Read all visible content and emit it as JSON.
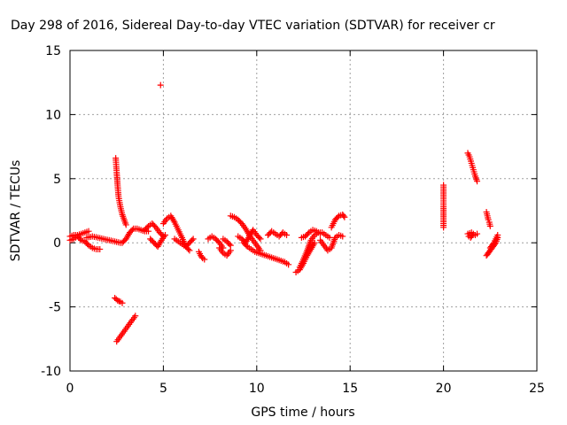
{
  "chart_data": {
    "type": "scatter",
    "title": "Day 298 of 2016, Sidereal Day-to-day VTEC variation (SDTVAR) for receiver cr",
    "xlabel": "GPS time / hours",
    "ylabel": "SDTVAR / TECUs",
    "xlim": [
      0,
      25
    ],
    "ylim": [
      -10,
      15
    ],
    "xticks": [
      "0",
      "5",
      "10",
      "15",
      "20",
      "25"
    ],
    "yticks": [
      "-10",
      "-5",
      "0",
      "5",
      "10",
      "15"
    ],
    "grid": true,
    "marker": "+",
    "color": "#ff0000",
    "series": [
      {
        "segments": [
          {
            "x": [
              0.0,
              0.2,
              0.4,
              0.6,
              0.8,
              1.0,
              1.2,
              1.4,
              1.6
            ],
            "y": [
              0.2,
              0.3,
              0.5,
              0.2,
              0.1,
              -0.2,
              -0.4,
              -0.5,
              -0.5
            ]
          },
          {
            "x": [
              0.0,
              0.2,
              0.4,
              0.6,
              0.8,
              1.0
            ],
            "y": [
              0.5,
              0.6,
              0.6,
              0.7,
              0.8,
              0.9
            ]
          },
          {
            "x": [
              0.9,
              1.2,
              1.5,
              1.8,
              2.1,
              2.4,
              2.7
            ],
            "y": [
              0.4,
              0.5,
              0.4,
              0.3,
              0.2,
              0.1,
              0.0
            ]
          },
          {
            "x": [
              2.45,
              2.5,
              2.55,
              2.6,
              2.7,
              2.8,
              2.9,
              3.0
            ],
            "y": [
              6.6,
              5.5,
              4.5,
              3.6,
              2.8,
              2.2,
              1.8,
              1.4
            ]
          },
          {
            "x": [
              2.4,
              2.55,
              2.7,
              2.8
            ],
            "y": [
              -4.3,
              -4.5,
              -4.6,
              -4.7
            ]
          },
          {
            "x": [
              2.5,
              2.7,
              2.9,
              3.1,
              3.3,
              3.5
            ],
            "y": [
              -7.7,
              -7.3,
              -6.9,
              -6.5,
              -6.1,
              -5.7
            ]
          },
          {
            "x": [
              2.8,
              3.0,
              3.2,
              3.4,
              3.6,
              3.8,
              4.0,
              4.2
            ],
            "y": [
              0.0,
              0.3,
              0.8,
              1.1,
              1.1,
              1.0,
              0.9,
              0.9
            ]
          },
          {
            "x": [
              4.0,
              4.2,
              4.4,
              4.6,
              4.8,
              5.0
            ],
            "y": [
              1.0,
              1.3,
              1.5,
              1.2,
              0.8,
              0.5
            ]
          },
          {
            "x": [
              4.3,
              4.5,
              4.7,
              4.9,
              5.1
            ],
            "y": [
              0.3,
              0.0,
              -0.3,
              0.2,
              0.6
            ]
          },
          {
            "x": [
              4.85
            ],
            "y": [
              12.3
            ]
          },
          {
            "x": [
              5.0,
              5.2,
              5.4,
              5.6,
              5.8,
              6.0,
              6.2,
              6.4
            ],
            "y": [
              1.5,
              1.9,
              2.1,
              1.6,
              1.0,
              0.4,
              -0.3,
              -0.6
            ]
          },
          {
            "x": [
              5.6,
              5.8,
              6.0,
              6.2,
              6.4,
              6.6
            ],
            "y": [
              0.3,
              0.1,
              -0.1,
              -0.3,
              0.0,
              0.3
            ]
          },
          {
            "x": [
              6.9,
              7.0,
              7.1,
              7.2
            ],
            "y": [
              -0.7,
              -1.0,
              -1.2,
              -1.3
            ]
          },
          {
            "x": [
              7.4,
              7.6,
              7.8,
              8.0,
              8.2
            ],
            "y": [
              0.3,
              0.5,
              0.3,
              0.0,
              -0.4
            ]
          },
          {
            "x": [
              8.0,
              8.2,
              8.4,
              8.6
            ],
            "y": [
              -0.4,
              -0.8,
              -1.0,
              -0.6
            ]
          },
          {
            "x": [
              8.2,
              8.4,
              8.6
            ],
            "y": [
              0.3,
              0.1,
              -0.2
            ]
          },
          {
            "x": [
              8.6,
              8.8,
              9.0,
              9.2,
              9.4,
              9.6,
              9.8,
              10.0,
              10.2
            ],
            "y": [
              2.1,
              2.0,
              1.8,
              1.5,
              1.1,
              0.6,
              0.2,
              -0.2,
              -0.6
            ]
          },
          {
            "x": [
              9.0,
              9.2,
              9.4,
              9.6,
              9.8,
              10.0,
              10.2
            ],
            "y": [
              0.5,
              0.3,
              0.0,
              0.5,
              1.0,
              0.6,
              0.3
            ]
          },
          {
            "x": [
              9.3,
              9.5,
              9.7,
              9.9,
              10.1,
              10.3,
              10.5,
              10.7,
              10.9,
              11.1,
              11.3,
              11.5,
              11.7
            ],
            "y": [
              0.0,
              -0.3,
              -0.5,
              -0.7,
              -0.8,
              -0.9,
              -1.0,
              -1.1,
              -1.2,
              -1.3,
              -1.4,
              -1.5,
              -1.7
            ]
          },
          {
            "x": [
              10.6,
              10.8,
              11.0,
              11.2,
              11.4,
              11.6
            ],
            "y": [
              0.6,
              0.9,
              0.7,
              0.5,
              0.8,
              0.6
            ]
          },
          {
            "x": [
              12.1,
              12.3,
              12.5,
              12.7,
              12.9,
              13.1
            ],
            "y": [
              -2.3,
              -2.1,
              -1.6,
              -1.0,
              -0.5,
              0.0
            ]
          },
          {
            "x": [
              12.3,
              12.5,
              12.7,
              12.9,
              13.1,
              13.3,
              13.5,
              13.7,
              13.9
            ],
            "y": [
              -1.9,
              -1.3,
              -0.6,
              0.2,
              0.6,
              0.8,
              0.8,
              0.6,
              0.4
            ]
          },
          {
            "x": [
              12.4,
              12.6,
              12.8,
              13.0,
              13.2,
              13.4
            ],
            "y": [
              0.4,
              0.5,
              0.8,
              1.0,
              0.9,
              0.7
            ]
          },
          {
            "x": [
              13.4,
              13.6,
              13.8,
              14.0,
              14.2,
              14.4,
              14.6
            ],
            "y": [
              0.2,
              -0.2,
              -0.6,
              -0.4,
              0.4,
              0.6,
              0.5
            ]
          },
          {
            "x": [
              14.0,
              14.2,
              14.4,
              14.6,
              14.7
            ],
            "y": [
              1.2,
              1.8,
              2.1,
              2.2,
              2.0
            ]
          },
          {
            "x": [
              20.0,
              20.0,
              20.0,
              20.0
            ],
            "y": [
              4.5,
              2.8,
              1.5,
              1.2
            ]
          },
          {
            "x": [
              21.3,
              21.4,
              21.5,
              21.6,
              21.7,
              21.8
            ],
            "y": [
              7.0,
              6.7,
              6.2,
              5.7,
              5.2,
              4.8
            ]
          },
          {
            "x": [
              21.3,
              21.5,
              21.7,
              21.8
            ],
            "y": [
              0.7,
              0.8,
              0.6,
              0.7
            ]
          },
          {
            "x": [
              21.35,
              21.45,
              21.55
            ],
            "y": [
              0.5,
              0.4,
              0.6
            ]
          },
          {
            "x": [
              22.3,
              22.35,
              22.4,
              22.45,
              22.5
            ],
            "y": [
              2.4,
              2.1,
              1.8,
              1.6,
              1.3
            ]
          },
          {
            "x": [
              22.3,
              22.4,
              22.5,
              22.6,
              22.7,
              22.8,
              22.9
            ],
            "y": [
              -1.0,
              -0.8,
              -0.6,
              -0.4,
              -0.2,
              0.0,
              0.4
            ]
          },
          {
            "x": [
              22.5,
              22.6,
              22.7,
              22.8,
              22.9
            ],
            "y": [
              -0.4,
              -0.2,
              0.0,
              0.3,
              0.6
            ]
          }
        ]
      }
    ]
  }
}
